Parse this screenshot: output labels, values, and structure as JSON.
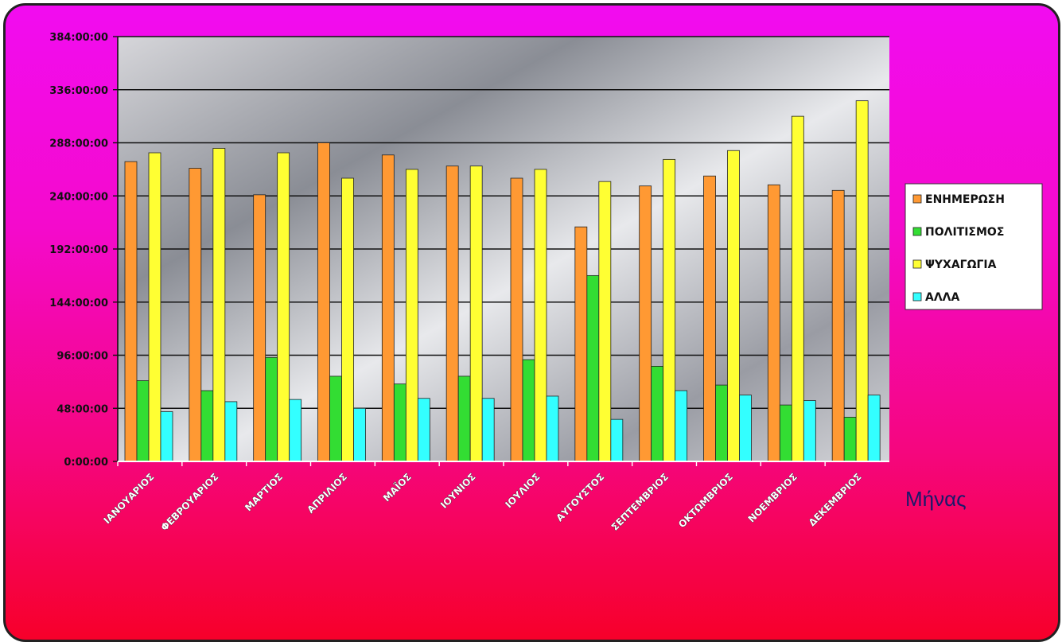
{
  "chart_data": {
    "type": "bar",
    "title": "",
    "xlabel": "Μήνας",
    "ylabel": "",
    "ylim": [
      0,
      384
    ],
    "y_unit": "hours",
    "yticks": [
      0,
      48,
      96,
      144,
      192,
      240,
      288,
      336,
      384
    ],
    "ytick_labels": [
      "0:00:00",
      "48:00:00",
      "96:00:00",
      "144:00:00",
      "192:00:00",
      "240:00:00",
      "288:00:00",
      "336:00:00",
      "384:00:00"
    ],
    "grid": true,
    "legend_position": "right",
    "categories": [
      "ΙΑΝΟΥΑΡΙΟΣ",
      "ΦΕΒΡΟΥΑΡΙΟΣ",
      "ΜΑΡΤΙΟΣ",
      "ΑΠΡΙΛΙΟΣ",
      "ΜΑΪΟΣ",
      "ΙΟΥΝΙΟΣ",
      "ΙΟΥΛΙΟΣ",
      "ΑΥΓΟΥΣΤΟΣ",
      "ΣΕΠΤΕΜΒΡΙΟΣ",
      "ΟΚΤΩΜΒΡΙΟΣ",
      "ΝΟΕΜΒΡΙΟΣ",
      "ΔΕΚΕΜΒΡΙΟΣ"
    ],
    "series": [
      {
        "name": "ΕΝΗΜΕΡΩΣΗ",
        "color": "#ff9933",
        "values": [
          271,
          265,
          241,
          288,
          277,
          267,
          256,
          212,
          249,
          258,
          250,
          245
        ]
      },
      {
        "name": "ΠΟΛΙΤΙΣΜΟΣ",
        "color": "#33dd33",
        "values": [
          73,
          64,
          94,
          77,
          70,
          77,
          92,
          168,
          86,
          69,
          51,
          40
        ]
      },
      {
        "name": "ΨΥΧΑΓΩΓΙΑ",
        "color": "#ffff33",
        "values": [
          279,
          283,
          279,
          256,
          264,
          267,
          264,
          253,
          273,
          281,
          312,
          326
        ]
      },
      {
        "name": "ΑΛΛΑ",
        "color": "#33ffff",
        "values": [
          45,
          54,
          56,
          48,
          57,
          57,
          59,
          38,
          64,
          60,
          55,
          60
        ]
      }
    ]
  }
}
